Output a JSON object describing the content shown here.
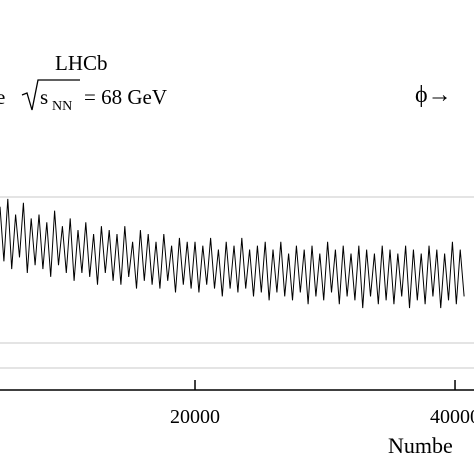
{
  "chart_data": {
    "type": "line",
    "experiment": "LHCb",
    "energy_prefix": "e",
    "energy_var": "s",
    "energy_sub": "NN",
    "energy_value": "= 68 GeV",
    "decay": "ϕ→",
    "x_label": "Numbe",
    "xlim": [
      5000,
      41460
    ],
    "xticks": [
      20000,
      40000
    ],
    "ylim": [
      0,
      100
    ],
    "x": [
      5000,
      5300,
      5600,
      5900,
      6200,
      6500,
      6800,
      7100,
      7400,
      7700,
      8000,
      8300,
      8600,
      8900,
      9200,
      9500,
      9800,
      10100,
      10400,
      10700,
      11000,
      11300,
      11600,
      11900,
      12200,
      12500,
      12800,
      13100,
      13400,
      13700,
      14000,
      14300,
      14600,
      14900,
      15200,
      15500,
      15800,
      16100,
      16400,
      16700,
      17000,
      17300,
      17600,
      17900,
      18200,
      18500,
      18800,
      19100,
      19400,
      19700,
      20000,
      20300,
      20600,
      20900,
      21200,
      21500,
      21800,
      22100,
      22400,
      22700,
      23000,
      23300,
      23600,
      23900,
      24200,
      24500,
      24800,
      25100,
      25400,
      25700,
      26000,
      26300,
      26600,
      26900,
      27200,
      27500,
      27800,
      28100,
      28400,
      28700,
      29000,
      29300,
      29600,
      29900,
      30200,
      30500,
      30800,
      31100,
      31400,
      31700,
      32000,
      32300,
      32600,
      32900,
      33200,
      33500,
      33800,
      34100,
      34400,
      34700,
      35000,
      35300,
      35600,
      35900,
      36200,
      36500,
      36800,
      37100,
      37400,
      37700,
      38000,
      38300,
      38600,
      38900,
      39200,
      39500,
      39800,
      40100,
      40400,
      40700
    ],
    "series": [
      {
        "color": "#000000",
        "values": [
          47,
          33,
          49,
          31,
          45,
          34,
          48,
          30,
          44,
          32,
          45,
          31,
          43,
          29,
          46,
          32,
          42,
          30,
          44,
          28,
          41,
          30,
          43,
          29,
          40,
          27,
          42,
          30,
          41,
          28,
          40,
          27,
          42,
          29,
          38,
          26,
          41,
          28,
          40,
          27,
          38,
          26,
          40,
          28,
          37,
          25,
          39,
          27,
          38,
          26,
          38,
          25,
          37,
          27,
          39,
          26,
          36,
          24,
          38,
          26,
          37,
          25,
          39,
          26,
          36,
          24,
          37,
          25,
          38,
          23,
          36,
          25,
          38,
          24,
          35,
          23,
          37,
          25,
          36,
          22,
          37,
          24,
          35,
          23,
          38,
          25,
          36,
          22,
          37,
          24,
          35,
          23,
          37,
          21,
          36,
          24,
          35,
          22,
          37,
          23,
          36,
          22,
          35,
          24,
          37,
          21,
          36,
          23,
          35,
          22,
          37,
          24,
          36,
          21,
          35,
          23,
          38,
          22,
          36,
          24
        ]
      }
    ]
  }
}
